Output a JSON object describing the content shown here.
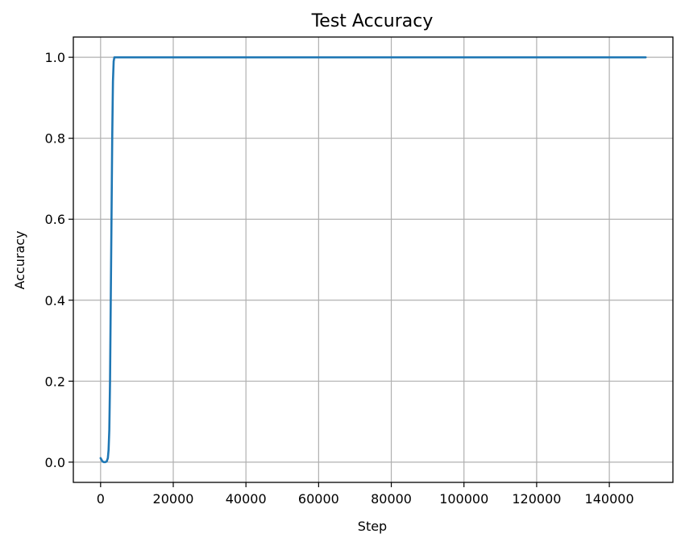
{
  "chart_data": {
    "type": "line",
    "title": "Test Accuracy",
    "xlabel": "Step",
    "ylabel": "Accuracy",
    "xlim": [
      -7500,
      157500
    ],
    "ylim": [
      -0.05,
      1.05
    ],
    "x_ticks": [
      0,
      20000,
      40000,
      60000,
      80000,
      100000,
      120000,
      140000
    ],
    "x_tick_labels": [
      "0",
      "20000",
      "40000",
      "60000",
      "80000",
      "100000",
      "120000",
      "140000"
    ],
    "y_ticks": [
      0.0,
      0.2,
      0.4,
      0.6,
      0.8,
      1.0
    ],
    "y_tick_labels": [
      "0.0",
      "0.2",
      "0.4",
      "0.6",
      "0.8",
      "1.0"
    ],
    "grid": true,
    "series": [
      {
        "color": "#1f77b4",
        "x": [
          0,
          500,
          900,
          1300,
          1700,
          2000,
          2200,
          2400,
          2600,
          2800,
          3000,
          3200,
          3400,
          3600,
          3800,
          4200,
          5000,
          10000,
          20000,
          40000,
          60000,
          80000,
          100000,
          120000,
          140000,
          150000
        ],
        "y": [
          0.01,
          0.002,
          0.0,
          0.0,
          0.002,
          0.01,
          0.03,
          0.08,
          0.2,
          0.4,
          0.6,
          0.8,
          0.94,
          0.99,
          1.0,
          1.0,
          1.0,
          1.0,
          1.0,
          1.0,
          1.0,
          1.0,
          1.0,
          1.0,
          1.0,
          1.0
        ]
      }
    ]
  }
}
